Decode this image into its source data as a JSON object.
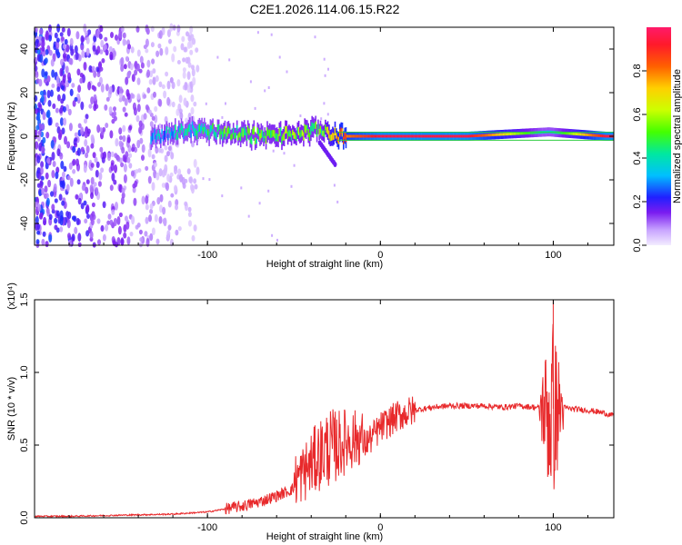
{
  "title": "C2E1.2026.114.06.15.R22",
  "colors": {
    "signal": "#e8292b",
    "spectrogram_low": "#e6d8ff",
    "spectrogram_mid": "#6a1cf0",
    "axis": "#000000"
  },
  "chart_data": [
    {
      "type": "heatmap",
      "name": "spectrogram",
      "xlabel": "Height of straight line (km)",
      "ylabel": "Frequency (Hz)",
      "xlim": [
        -200,
        135
      ],
      "ylim": [
        -50,
        50
      ],
      "xticks": [
        -100,
        0,
        100
      ],
      "xtick_labels": [
        "-100",
        "0",
        "100"
      ],
      "yticks": [
        -40,
        -20,
        0,
        20,
        40
      ],
      "ytick_labels": [
        "-40",
        "-20",
        "0",
        "20",
        "40"
      ],
      "description_points": [
        {
          "x": -130,
          "y": 0,
          "amp": 0.25
        },
        {
          "x": -110,
          "y": 3,
          "amp": 0.35
        },
        {
          "x": -90,
          "y": 2,
          "amp": 0.45
        },
        {
          "x": -70,
          "y": 0,
          "amp": 0.45
        },
        {
          "x": -50,
          "y": 1,
          "amp": 0.5
        },
        {
          "x": -35,
          "y": 3,
          "amp": 0.45
        },
        {
          "x": -25,
          "y": 0,
          "amp": 0.75
        },
        {
          "x": 0,
          "y": 0,
          "amp": 0.95
        },
        {
          "x": 50,
          "y": 0,
          "amp": 0.95
        },
        {
          "x": 97,
          "y": 2,
          "amp": 0.35
        },
        {
          "x": 130,
          "y": 0,
          "amp": 0.95
        }
      ],
      "colorbar": {
        "label": "Normalized spectral amplitude",
        "range": [
          0,
          1
        ],
        "ticks": [
          0.0,
          0.2,
          0.4,
          0.6,
          0.8
        ],
        "tick_labels": [
          "0.0",
          "0.2",
          "0.4",
          "0.6",
          "0.8"
        ]
      }
    },
    {
      "type": "line",
      "name": "snr",
      "xlabel": "Height of straight line (km)",
      "ylabel": "SNR (10 * v/v)",
      "ylabel_multiplier": "(x10⁴)",
      "xlim": [
        -200,
        135
      ],
      "ylim": [
        0,
        1.5
      ],
      "xticks": [
        -100,
        0,
        100
      ],
      "xtick_labels": [
        "-100",
        "0",
        "100"
      ],
      "yticks": [
        0.0,
        0.5,
        1.0,
        1.5
      ],
      "ytick_labels": [
        "0.0",
        "0.5",
        "1.0",
        "1.5"
      ],
      "series": [
        {
          "name": "SNR",
          "x": [
            -200,
            -180,
            -160,
            -140,
            -120,
            -100,
            -90,
            -80,
            -70,
            -60,
            -50,
            -45,
            -40,
            -35,
            -30,
            -25,
            -20,
            -15,
            -10,
            -5,
            0,
            10,
            20,
            30,
            40,
            50,
            60,
            70,
            80,
            90,
            95,
            98,
            100,
            102,
            105,
            110,
            120,
            130,
            135
          ],
          "y": [
            0.01,
            0.01,
            0.015,
            0.02,
            0.025,
            0.04,
            0.06,
            0.08,
            0.11,
            0.15,
            0.2,
            0.24,
            0.3,
            0.36,
            0.4,
            0.42,
            0.46,
            0.48,
            0.5,
            0.55,
            0.62,
            0.7,
            0.74,
            0.76,
            0.77,
            0.77,
            0.77,
            0.76,
            0.77,
            0.76,
            0.75,
            0.7,
            0.75,
            0.73,
            0.76,
            0.75,
            0.74,
            0.72,
            0.7
          ]
        }
      ],
      "annotations": [
        {
          "x": -35,
          "y": 0.9,
          "text": ""
        },
        {
          "x": 100,
          "y": 1.5,
          "text": ""
        }
      ]
    }
  ]
}
